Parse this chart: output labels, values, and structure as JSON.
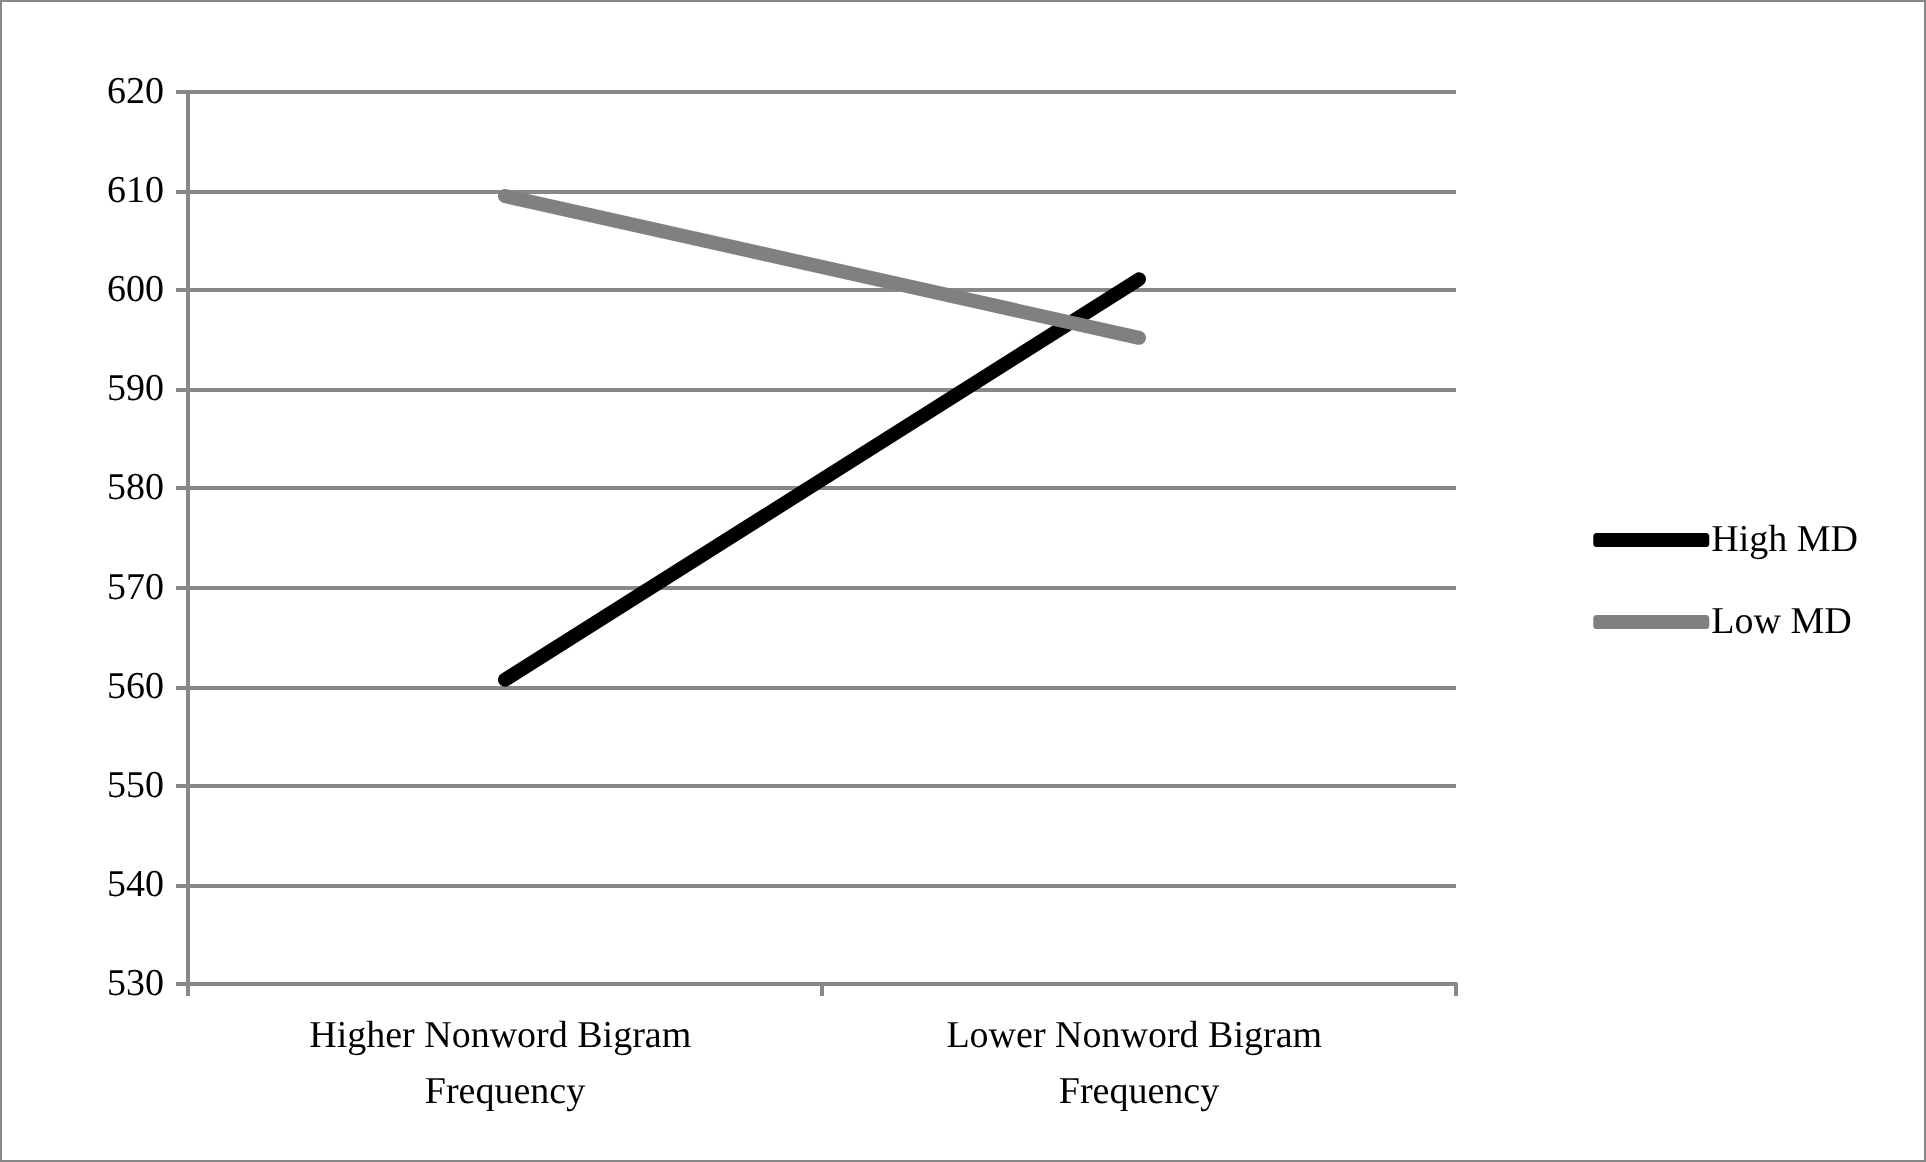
{
  "chart_data": {
    "type": "line",
    "categories": [
      "Higher Nonword Bigram Frequency",
      "Lower Nonword Bigram Frequency"
    ],
    "series": [
      {
        "name": "High MD",
        "color": "#000000",
        "values": [
          560.7,
          601.1
        ]
      },
      {
        "name": "Low MD",
        "color": "#808080",
        "values": [
          609.5,
          595.2
        ]
      }
    ],
    "ylim": [
      530,
      620
    ],
    "yticks": [
      530,
      540,
      550,
      560,
      570,
      580,
      590,
      600,
      610,
      620
    ],
    "grid": "y",
    "legend": "right",
    "marker": "none",
    "line_style": "solid"
  }
}
